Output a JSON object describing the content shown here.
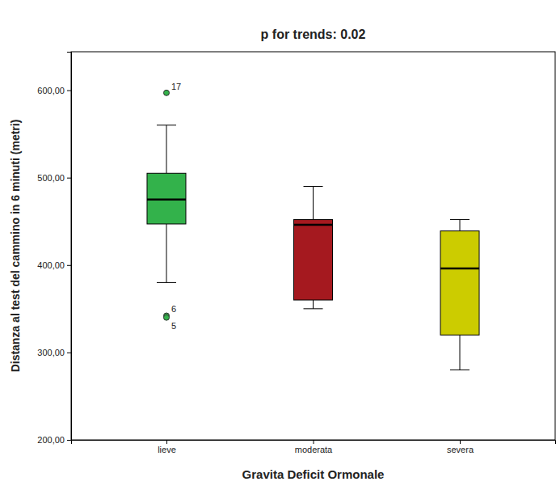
{
  "chart_data": {
    "type": "boxplot",
    "title": "p for trends: 0.02",
    "x_label": "Gravita Deficit Ormonale",
    "y_label": "Distanza al test del cammino in 6 minuti (metri)",
    "categories": [
      "lieve",
      "moderata",
      "severa"
    ],
    "stats": [
      {
        "min": 380,
        "q1": 447,
        "median": 475,
        "q3": 505,
        "max": 560
      },
      {
        "min": 350,
        "q1": 360,
        "median": 446,
        "q3": 452,
        "max": 490
      },
      {
        "min": 280,
        "q1": 320,
        "median": 396,
        "q3": 439,
        "max": 452
      }
    ],
    "outliers": [
      {
        "category": 0,
        "value": 597,
        "label": "17"
      },
      {
        "category": 0,
        "value": 342,
        "label": "6"
      },
      {
        "category": 0,
        "value": 340,
        "label": "5"
      }
    ],
    "colors": [
      "#33b24b",
      "#a5191f",
      "#cccc00"
    ],
    "ylim": [
      200,
      644
    ],
    "yticks": [
      {
        "value": 200,
        "label": "200,00"
      },
      {
        "value": 300,
        "label": "300,00"
      },
      {
        "value": 400,
        "label": "400,00"
      },
      {
        "value": 500,
        "label": "500,00"
      },
      {
        "value": 600,
        "label": "600,00"
      }
    ],
    "grid": false
  }
}
